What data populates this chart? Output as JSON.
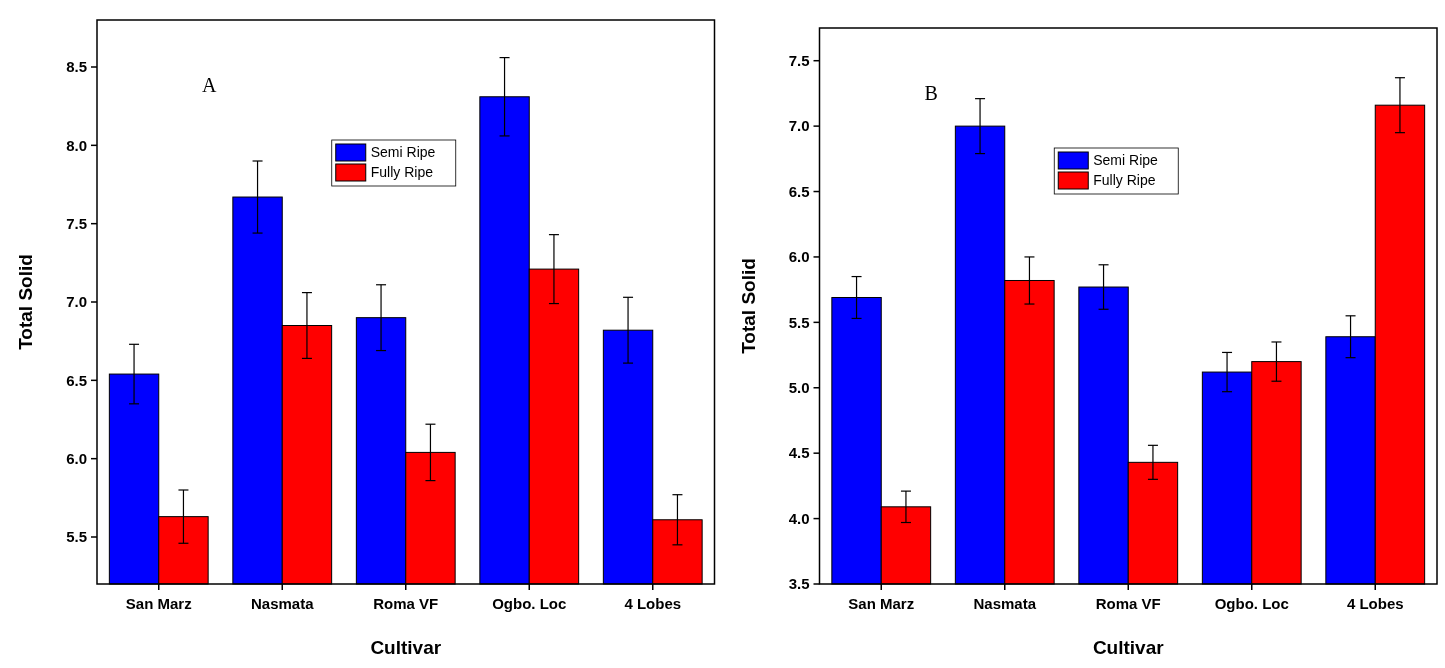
{
  "chart_data": [
    {
      "type": "bar",
      "xlabel": "Cultivar",
      "ylabel": "Total Solid",
      "categories": [
        "San Marz",
        "Nasmata",
        "Roma VF",
        "Ogbo. Loc",
        "4 Lobes"
      ],
      "ylim": [
        5.2,
        8.8
      ],
      "yticks": [
        5.5,
        {
          "value": 6,
          "label": "6.0"
        },
        6.5,
        {
          "value": 7,
          "label": "7.0"
        },
        7.5,
        {
          "value": 8,
          "label": "8.0"
        },
        8.5
      ],
      "legend": "top",
      "grid": false,
      "annotations": [
        "A"
      ],
      "series": [
        {
          "name": "Semi Ripe",
          "color": "#0000ff",
          "values": [
            6.54,
            7.67,
            6.9,
            8.31,
            6.82
          ],
          "errors": [
            0.19,
            0.23,
            0.21,
            0.25,
            0.21
          ]
        },
        {
          "name": "Fully Ripe",
          "color": "#ff0000",
          "values": [
            5.63,
            6.85,
            6.04,
            7.21,
            5.61
          ],
          "errors": [
            0.17,
            0.21,
            0.18,
            0.22,
            0.16
          ]
        }
      ]
    },
    {
      "type": "bar",
      "xlabel": "Cultivar",
      "ylabel": "Total Solid",
      "categories": [
        "San Marz",
        "Nasmata",
        "Roma VF",
        "Ogbo. Loc",
        "4 Lobes"
      ],
      "ylim": [
        3.5,
        7.75
      ],
      "yticks": [
        3.5,
        {
          "value": 4,
          "label": "4.0"
        },
        4.5,
        {
          "value": 5,
          "label": "5.0"
        },
        5.5,
        {
          "value": 6,
          "label": "6.0"
        },
        6.5,
        {
          "value": 7,
          "label": "7.0"
        },
        7.5
      ],
      "legend": "top",
      "grid": false,
      "annotations": [
        "B"
      ],
      "series": [
        {
          "name": "Semi Ripe",
          "color": "#0000ff",
          "values": [
            5.69,
            7.0,
            5.77,
            5.12,
            5.39
          ],
          "errors": [
            0.16,
            0.21,
            0.17,
            0.15,
            0.16
          ]
        },
        {
          "name": "Fully Ripe",
          "color": "#ff0000",
          "values": [
            4.09,
            5.82,
            4.43,
            5.2,
            7.16
          ],
          "errors": [
            0.12,
            0.18,
            0.13,
            0.15,
            0.21
          ]
        }
      ]
    }
  ]
}
